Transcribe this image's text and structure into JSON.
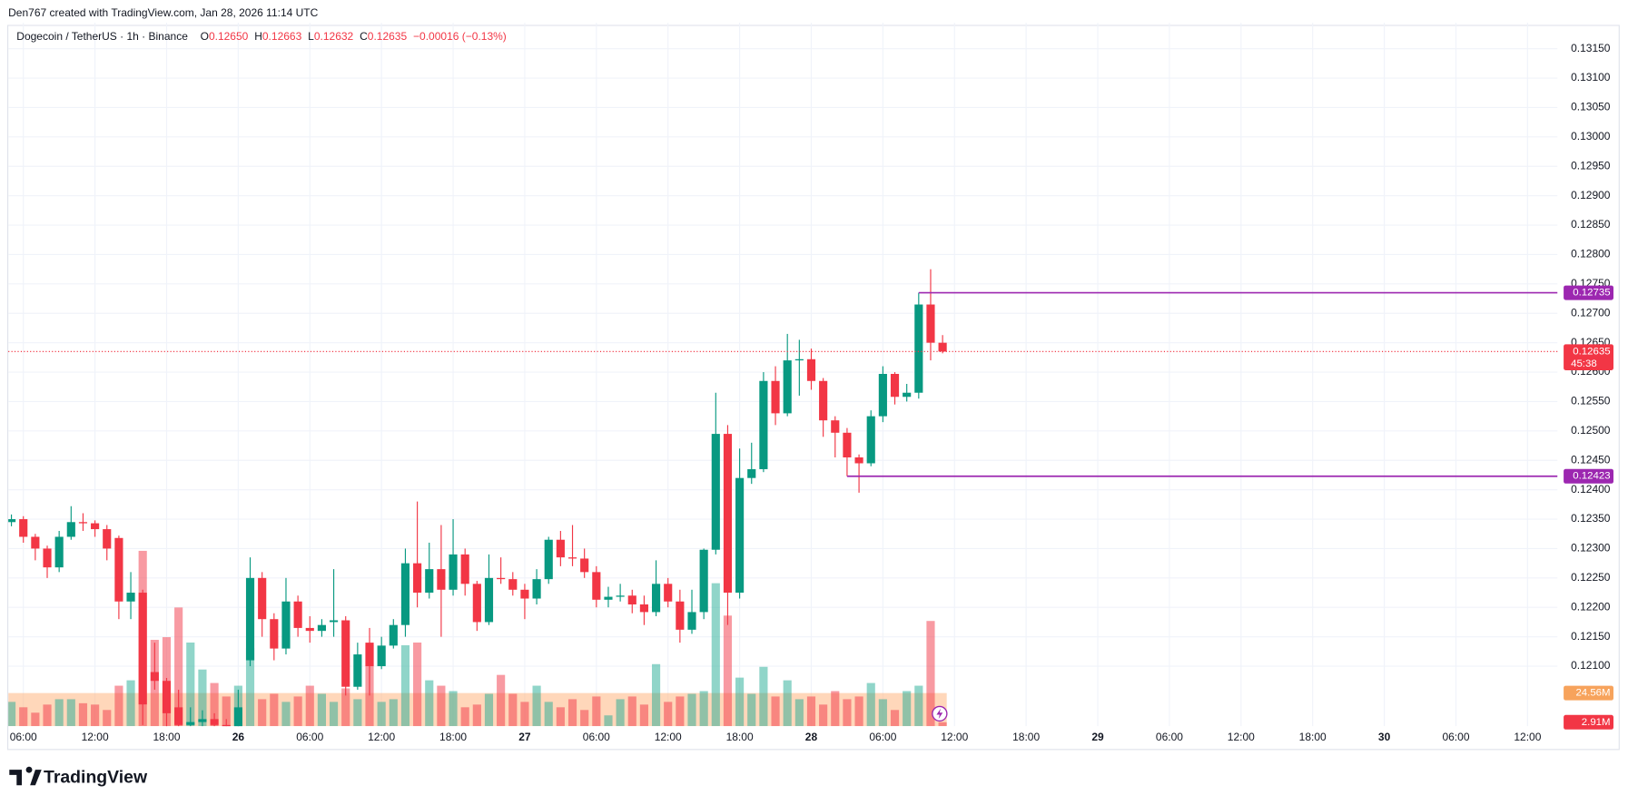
{
  "header": {
    "credit": "Den767 created with TradingView.com, Jan 28, 2026 11:14 UTC"
  },
  "footer": {
    "brand": "TradingView"
  },
  "chart_data": {
    "type": "candlestick",
    "legend": {
      "symbol": "Dogecoin / TetherUS · 1h · Binance",
      "items": [
        {
          "key": "O",
          "value": "0.12650"
        },
        {
          "key": "H",
          "value": "0.12663"
        },
        {
          "key": "L",
          "value": "0.12632"
        },
        {
          "key": "C",
          "value": "0.12635"
        }
      ],
      "change": "−0.00016 (−0.13%)"
    },
    "open": [
      0.12345,
      0.1235,
      0.1232,
      0.123,
      0.12268,
      0.1232,
      0.12345,
      0.12343,
      0.12333,
      0.12318,
      0.1221,
      0.12225,
      0.1209,
      0.12075,
      0.1203,
      0.12,
      0.12005,
      0.1201,
      0.12,
      0.11995,
      0.1211,
      0.1225,
      0.1218,
      0.1213,
      0.1221,
      0.12165,
      0.1216,
      0.12175,
      0.12178,
      0.12065,
      0.1214,
      0.121,
      0.12135,
      0.1217,
      0.12275,
      0.12225,
      0.12265,
      0.1223,
      0.1229,
      0.1224,
      0.12175,
      0.1225,
      0.12248,
      0.1223,
      0.12215,
      0.12248,
      0.12315,
      0.12285,
      0.12283,
      0.1226,
      0.12213,
      0.12218,
      0.1222,
      0.12205,
      0.12192,
      0.1224,
      0.1221,
      0.12162,
      0.12192,
      0.12298,
      0.12495,
      0.12225,
      0.1242,
      0.12435,
      0.12585,
      0.1253,
      0.1262,
      0.12622,
      0.12585,
      0.12518,
      0.12497,
      0.12455,
      0.12445,
      0.12525,
      0.12597,
      0.12558,
      0.12565,
      0.12715,
      0.1265
    ],
    "high": [
      0.12358,
      0.12355,
      0.12325,
      0.12305,
      0.1233,
      0.12372,
      0.1236,
      0.12348,
      0.1234,
      0.12322,
      0.1226,
      0.1223,
      0.1214,
      0.1208,
      0.1206,
      0.1203,
      0.12025,
      0.1202,
      0.1201,
      0.1206,
      0.12285,
      0.1226,
      0.1219,
      0.1225,
      0.1222,
      0.12185,
      0.1218,
      0.12265,
      0.12185,
      0.1214,
      0.12165,
      0.1215,
      0.1218,
      0.123,
      0.1238,
      0.1231,
      0.1234,
      0.1235,
      0.123,
      0.12245,
      0.1229,
      0.12285,
      0.1226,
      0.1224,
      0.12265,
      0.1232,
      0.1233,
      0.1234,
      0.123,
      0.1227,
      0.12235,
      0.1224,
      0.1223,
      0.1222,
      0.1228,
      0.1225,
      0.1223,
      0.1223,
      0.123,
      0.12565,
      0.1251,
      0.1247,
      0.1248,
      0.126,
      0.1261,
      0.12665,
      0.12655,
      0.1264,
      0.1259,
      0.12525,
      0.12505,
      0.1246,
      0.12535,
      0.1261,
      0.126,
      0.1258,
      0.12735,
      0.12775,
      0.12663
    ],
    "low": [
      0.12338,
      0.1231,
      0.1228,
      0.1225,
      0.1226,
      0.12315,
      0.1233,
      0.1232,
      0.1228,
      0.1218,
      0.1218,
      0.12,
      0.1206,
      0.1199,
      0.1198,
      0.11985,
      0.1199,
      0.11985,
      0.1198,
      0.1199,
      0.121,
      0.1215,
      0.1211,
      0.1212,
      0.1215,
      0.1214,
      0.1215,
      0.1215,
      0.1205,
      0.1206,
      0.1205,
      0.12095,
      0.1213,
      0.1215,
      0.122,
      0.12215,
      0.1215,
      0.1222,
      0.1222,
      0.1216,
      0.1217,
      0.1224,
      0.1222,
      0.1218,
      0.12205,
      0.1224,
      0.1227,
      0.1227,
      0.1225,
      0.122,
      0.122,
      0.1221,
      0.1219,
      0.1217,
      0.12185,
      0.122,
      0.1214,
      0.12155,
      0.1218,
      0.1229,
      0.1217,
      0.12215,
      0.1241,
      0.1243,
      0.1251,
      0.12525,
      0.1256,
      0.1257,
      0.1249,
      0.12455,
      0.12423,
      0.12395,
      0.1244,
      0.12515,
      0.12545,
      0.1255,
      0.12555,
      0.1262,
      0.12632
    ],
    "close": [
      0.1235,
      0.1232,
      0.123,
      0.12268,
      0.1232,
      0.12345,
      0.12343,
      0.12333,
      0.123,
      0.1221,
      0.12225,
      0.12035,
      0.12075,
      0.1202,
      0.12,
      0.12005,
      0.1201,
      0.12,
      0.11995,
      0.1203,
      0.1225,
      0.1218,
      0.1213,
      0.1221,
      0.12165,
      0.1216,
      0.1217,
      0.12178,
      0.12065,
      0.1212,
      0.121,
      0.12135,
      0.1217,
      0.12275,
      0.12225,
      0.12265,
      0.1223,
      0.1229,
      0.1224,
      0.12175,
      0.1225,
      0.12248,
      0.1223,
      0.12215,
      0.12248,
      0.12315,
      0.12285,
      0.12283,
      0.1226,
      0.12213,
      0.12218,
      0.1222,
      0.12205,
      0.12192,
      0.1224,
      0.1221,
      0.12162,
      0.12192,
      0.12298,
      0.12495,
      0.12225,
      0.1242,
      0.12435,
      0.12585,
      0.1253,
      0.1262,
      0.12622,
      0.12585,
      0.12518,
      0.12497,
      0.12455,
      0.12445,
      0.12525,
      0.12597,
      0.12558,
      0.12565,
      0.12715,
      0.1265,
      0.12635
    ],
    "up_color": "#089981",
    "down_color": "#f23645",
    "volume": {
      "values": [
        18,
        14,
        10,
        16,
        20,
        20,
        17,
        16,
        12,
        30,
        34,
        130,
        64,
        66,
        88,
        62,
        42,
        32,
        22,
        30,
        58,
        20,
        24,
        18,
        22,
        30,
        24,
        18,
        28,
        20,
        60,
        18,
        20,
        60,
        62,
        34,
        30,
        26,
        14,
        16,
        24,
        38,
        24,
        18,
        30,
        18,
        14,
        20,
        12,
        22,
        8,
        20,
        22,
        16,
        46,
        18,
        22,
        24,
        26,
        106,
        82,
        36,
        24,
        44,
        22,
        34,
        20,
        22,
        16,
        26,
        20,
        22,
        32,
        20,
        12,
        26,
        30,
        78,
        2.91
      ],
      "last_label": "2.91M",
      "up_color": "#22ab9480",
      "down_color": "#f2364580",
      "ma": {
        "value": 24.56,
        "label": "24.56M"
      },
      "ma_color": "#ffb47d88",
      "ma_tag_color": "#f7a35c"
    },
    "levels": [
      {
        "value": 0.12735,
        "label": "0.12735"
      },
      {
        "value": 0.12423,
        "label": "0.12423"
      }
    ],
    "level_color": "#9c27b0",
    "price_tag": {
      "label": "0.12635",
      "countdown": "45:38"
    },
    "xlim": [
      -0.26,
      129.5
    ],
    "ylim": [
      0.11998,
      0.13194
    ],
    "xticks": [
      {
        "value": 1,
        "label": "06:00"
      },
      {
        "value": 7,
        "label": "12:00"
      },
      {
        "value": 13,
        "label": "18:00"
      },
      {
        "value": 19,
        "label": "26"
      },
      {
        "value": 25,
        "label": "06:00"
      },
      {
        "value": 31,
        "label": "12:00"
      },
      {
        "value": 37,
        "label": "18:00"
      },
      {
        "value": 43,
        "label": "27"
      },
      {
        "value": 49,
        "label": "06:00"
      },
      {
        "value": 55,
        "label": "12:00"
      },
      {
        "value": 61,
        "label": "18:00"
      },
      {
        "value": 67,
        "label": "28"
      },
      {
        "value": 73,
        "label": "06:00"
      },
      {
        "value": 79,
        "label": "12:00"
      },
      {
        "value": 85,
        "label": "18:00"
      },
      {
        "value": 91,
        "label": "29"
      },
      {
        "value": 97,
        "label": "06:00"
      },
      {
        "value": 103,
        "label": "12:00"
      },
      {
        "value": 109,
        "label": "18:00"
      },
      {
        "value": 115,
        "label": "30"
      },
      {
        "value": 121,
        "label": "06:00"
      },
      {
        "value": 127,
        "label": "12:00"
      }
    ],
    "yticks": [
      {
        "value": 0.121,
        "label": "0.12100"
      },
      {
        "value": 0.1215,
        "label": "0.12150"
      },
      {
        "value": 0.122,
        "label": "0.12200"
      },
      {
        "value": 0.1225,
        "label": "0.12250"
      },
      {
        "value": 0.123,
        "label": "0.12300"
      },
      {
        "value": 0.1235,
        "label": "0.12350"
      },
      {
        "value": 0.124,
        "label": "0.12400"
      },
      {
        "value": 0.1245,
        "label": "0.12450"
      },
      {
        "value": 0.125,
        "label": "0.12500"
      },
      {
        "value": 0.1255,
        "label": "0.12550"
      },
      {
        "value": 0.126,
        "label": "0.12600"
      },
      {
        "value": 0.1265,
        "label": "0.12650"
      },
      {
        "value": 0.127,
        "label": "0.12700"
      },
      {
        "value": 0.1275,
        "label": "0.12750"
      },
      {
        "value": 0.128,
        "label": "0.12800"
      },
      {
        "value": 0.1285,
        "label": "0.12850"
      },
      {
        "value": 0.129,
        "label": "0.12900"
      },
      {
        "value": 0.1295,
        "label": "0.12950"
      },
      {
        "value": 0.13,
        "label": "0.13000"
      },
      {
        "value": 0.1305,
        "label": "0.13050"
      },
      {
        "value": 0.131,
        "label": "0.13100"
      },
      {
        "value": 0.1315,
        "label": "0.13150"
      }
    ],
    "grid": true
  }
}
